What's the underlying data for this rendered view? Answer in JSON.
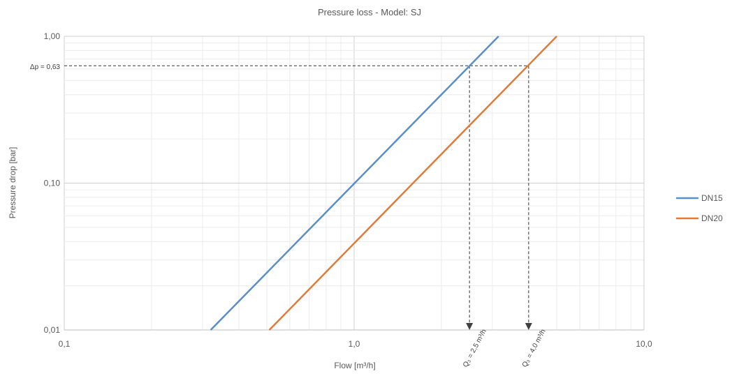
{
  "chart_data": {
    "type": "line",
    "title": "Pressure loss - Model: SJ",
    "xlabel": "Flow [m³/h]",
    "ylabel": "Pressure drop [bar]",
    "x_scale": "log",
    "y_scale": "log",
    "xlim": [
      0.1,
      10
    ],
    "ylim": [
      0.01,
      1
    ],
    "x_ticks": [
      {
        "value": 0.1,
        "label": "0,1"
      },
      {
        "value": 1,
        "label": "1,0"
      },
      {
        "value": 10,
        "label": "10,0"
      }
    ],
    "y_ticks": [
      {
        "value": 0.01,
        "label": "0,01"
      },
      {
        "value": 0.1,
        "label": "0,10"
      },
      {
        "value": 1,
        "label": "1,00"
      }
    ],
    "grid": true,
    "legend": "right",
    "series": [
      {
        "name": "DN15",
        "color": "#5b8fc9",
        "x": [
          0.32,
          3.15
        ],
        "y": [
          0.01,
          1.0
        ]
      },
      {
        "name": "DN20",
        "color": "#e07b39",
        "x": [
          0.51,
          5.0
        ],
        "y": [
          0.01,
          1.0
        ]
      }
    ],
    "reference": {
      "label": "Δp = 0,63",
      "y": 0.63,
      "markers": [
        {
          "x": 2.5,
          "label": "Q₃ = 2,5 m³/h"
        },
        {
          "x": 4.0,
          "label": "Q₃ = 4,0 m³/h"
        }
      ]
    }
  }
}
